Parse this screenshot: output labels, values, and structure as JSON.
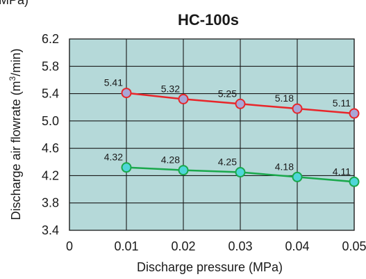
{
  "chart_data": {
    "type": "line",
    "title": "HC-100s",
    "corner_label": "(MPa)",
    "xlabel": "Discharge pressure (MPa)",
    "ylabel_pre": "Discharge air flowrate (m",
    "ylabel_sup": "3",
    "ylabel_post": "/min)",
    "x": [
      0.01,
      0.02,
      0.03,
      0.04,
      0.05
    ],
    "x_ticks": [
      "0",
      "0.01",
      "0.02",
      "0.03",
      "0.04",
      "0.05"
    ],
    "y_ticks": [
      "3.4",
      "3.8",
      "4.2",
      "4.6",
      "5.0",
      "5.4",
      "5.8",
      "6.2"
    ],
    "xlim": [
      0,
      0.05
    ],
    "ylim": [
      3.4,
      6.2
    ],
    "grid": true,
    "colors": {
      "plot_bg": "#b5d9d9",
      "grid": "#1a1a1a"
    },
    "series": [
      {
        "values": [
          5.41,
          5.32,
          5.25,
          5.18,
          5.11
        ],
        "labels": [
          "5.41",
          "5.32",
          "5.25",
          "5.18",
          "5.11"
        ],
        "line_color": "#e8262a",
        "marker_color": "#a9a6d6"
      },
      {
        "values": [
          4.32,
          4.28,
          4.25,
          4.18,
          4.11
        ],
        "labels": [
          "4.32",
          "4.28",
          "4.25",
          "4.18",
          "4.11"
        ],
        "line_color": "#1aa84c",
        "marker_color": "#4fd6d9"
      }
    ]
  }
}
